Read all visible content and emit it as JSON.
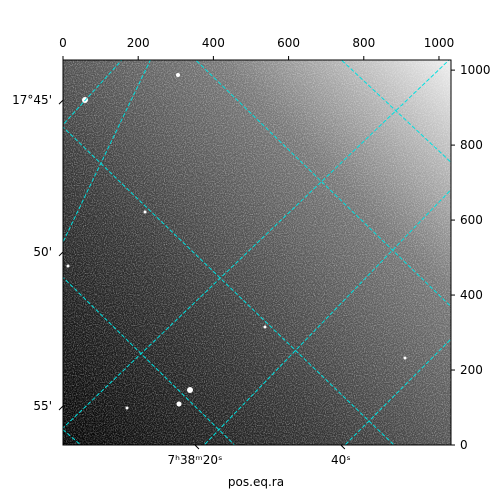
{
  "chart_data": {
    "type": "image",
    "xlabel": "pos.eq.ra",
    "xlim": [
      0,
      1032
    ],
    "ylim": [
      0,
      1027
    ],
    "xticks": [
      0,
      200,
      400,
      600,
      800,
      1000
    ],
    "yticks": [
      0,
      200,
      400,
      600,
      800,
      1000
    ],
    "ra_ticks": [
      {
        "value": 351,
        "label": "7ʰ38ᵐ20ˢ"
      },
      {
        "value": 739,
        "label": "40ˢ"
      }
    ],
    "dec_ticks": [
      {
        "value": 920,
        "label": "17°45'"
      },
      {
        "value": 515,
        "label": "50'"
      },
      {
        "value": 104,
        "label": "55'"
      }
    ],
    "grid_color": "#00e0e0"
  }
}
